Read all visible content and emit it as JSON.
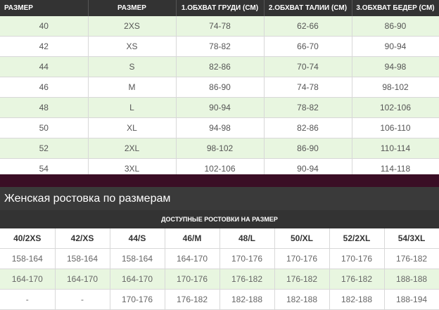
{
  "size_table": {
    "headers": [
      "РАЗМЕР",
      "РАЗМЕР",
      "1.ОБХВАТ ГРУДИ (СМ)",
      "2.ОБХВАТ ТАЛИИ (СМ)",
      "3.ОБХВАТ БЕДЕР (СМ)"
    ],
    "rows": [
      [
        "40",
        "2XS",
        "74-78",
        "62-66",
        "86-90"
      ],
      [
        "42",
        "XS",
        "78-82",
        "66-70",
        "90-94"
      ],
      [
        "44",
        "S",
        "82-86",
        "70-74",
        "94-98"
      ],
      [
        "46",
        "M",
        "86-90",
        "74-78",
        "98-102"
      ],
      [
        "48",
        "L",
        "90-94",
        "78-82",
        "102-106"
      ],
      [
        "50",
        "XL",
        "94-98",
        "82-86",
        "106-110"
      ],
      [
        "52",
        "2XL",
        "98-102",
        "86-90",
        "110-114"
      ],
      [
        "54",
        "3XL",
        "102-106",
        "90-94",
        "114-118"
      ]
    ]
  },
  "height_section": {
    "title": "Женская ростовка по размерам",
    "caption": "ДОСТУПНЫЕ РОСТОВКИ НА РАЗМЕР",
    "headers": [
      "40/2XS",
      "42/XS",
      "44/S",
      "46/M",
      "48/L",
      "50/XL",
      "52/2XL",
      "54/3XL"
    ],
    "rows": [
      [
        "158-164",
        "158-164",
        "158-164",
        "164-170",
        "170-176",
        "170-176",
        "170-176",
        "176-182"
      ],
      [
        "164-170",
        "164-170",
        "164-170",
        "170-176",
        "176-182",
        "176-182",
        "176-182",
        "188-188"
      ],
      [
        "-",
        "-",
        "170-176",
        "176-182",
        "182-188",
        "182-188",
        "182-188",
        "188-194"
      ]
    ]
  },
  "colors": {
    "header_bg": "#333333",
    "row_tint": "#e8f6e0",
    "divider": "#3a0e25"
  }
}
